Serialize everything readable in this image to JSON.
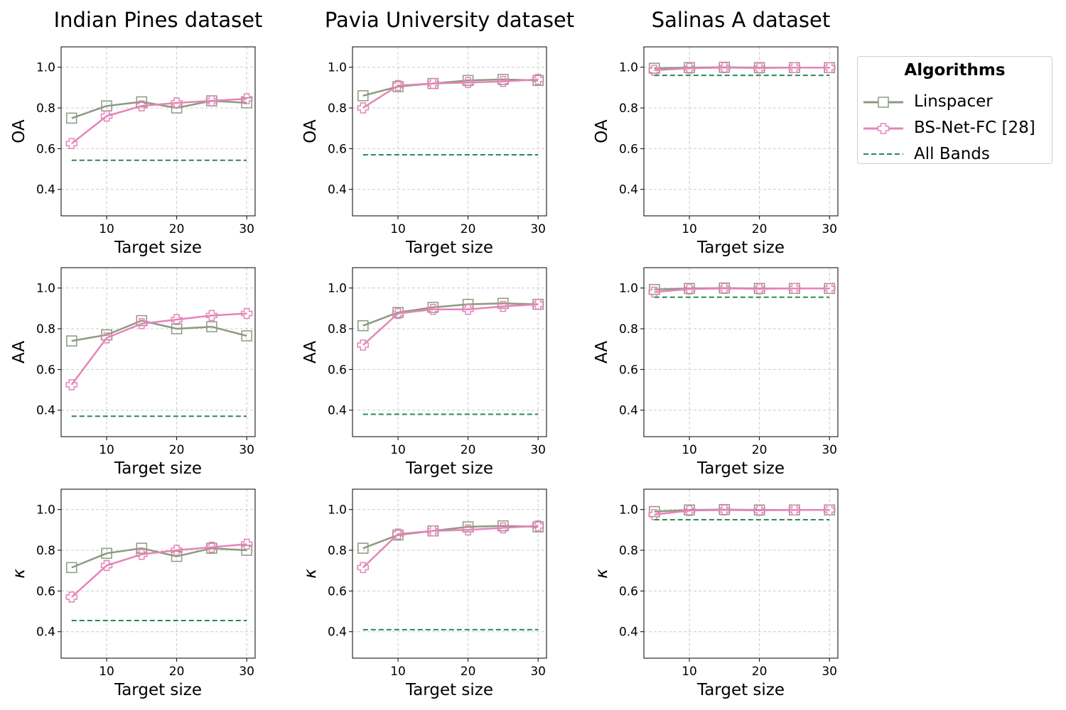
{
  "legend": {
    "title": "Algorithms",
    "entries": [
      "Linspacer",
      "BS-Net-FC [28]",
      "All Bands"
    ]
  },
  "colors": {
    "linspacer": "#8c9a80",
    "bsnet": "#e584b8",
    "all_bands": "#2a8a50",
    "grid": "#cccccc"
  },
  "chart_data": [
    {
      "type": "line",
      "title": "Indian Pines dataset",
      "xlabel": "Target size",
      "ylabel": "OA",
      "x": [
        5,
        10,
        15,
        20,
        25,
        30
      ],
      "xticks": [
        10,
        20,
        30
      ],
      "yticks": [
        "0.4",
        "0.6",
        "0.8",
        "1.0"
      ],
      "xlim": [
        3.5,
        31.2
      ],
      "ylim": [
        0.27,
        1.1
      ],
      "grid": true,
      "series": [
        {
          "name": "Linspacer",
          "values": [
            0.75,
            0.81,
            0.83,
            0.8,
            0.835,
            0.825
          ]
        },
        {
          "name": "BS-Net-FC [28]",
          "values": [
            0.625,
            0.76,
            0.81,
            0.825,
            0.835,
            0.845
          ]
        },
        {
          "name": "All Bands",
          "values": [
            0.543,
            0.543,
            0.543,
            0.543,
            0.543,
            0.543
          ]
        }
      ]
    },
    {
      "type": "line",
      "title": "Pavia University dataset",
      "xlabel": "Target size",
      "ylabel": "OA",
      "x": [
        5,
        10,
        15,
        20,
        25,
        30
      ],
      "xticks": [
        10,
        20,
        30
      ],
      "yticks": [
        "0.4",
        "0.6",
        "0.8",
        "1.0"
      ],
      "xlim": [
        3.5,
        31.2
      ],
      "ylim": [
        0.27,
        1.1
      ],
      "grid": true,
      "series": [
        {
          "name": "Linspacer",
          "values": [
            0.86,
            0.905,
            0.92,
            0.935,
            0.94,
            0.935
          ]
        },
        {
          "name": "BS-Net-FC [28]",
          "values": [
            0.8,
            0.91,
            0.92,
            0.925,
            0.93,
            0.94
          ]
        },
        {
          "name": "All Bands",
          "values": [
            0.57,
            0.57,
            0.57,
            0.57,
            0.57,
            0.57
          ]
        }
      ]
    },
    {
      "type": "line",
      "title": "Salinas A dataset",
      "xlabel": "Target size",
      "ylabel": "OA",
      "x": [
        5,
        10,
        15,
        20,
        25,
        30
      ],
      "xticks": [
        10,
        20,
        30
      ],
      "yticks": [
        "0.4",
        "0.6",
        "0.8",
        "1.0"
      ],
      "xlim": [
        3.5,
        31.2
      ],
      "ylim": [
        0.27,
        1.1
      ],
      "grid": true,
      "series": [
        {
          "name": "Linspacer",
          "values": [
            0.995,
            0.998,
            1.0,
            0.998,
            0.998,
            0.998
          ]
        },
        {
          "name": "BS-Net-FC [28]",
          "values": [
            0.985,
            0.995,
            0.998,
            0.996,
            0.998,
            0.998
          ]
        },
        {
          "name": "All Bands",
          "values": [
            0.96,
            0.96,
            0.96,
            0.96,
            0.96,
            0.96
          ]
        }
      ]
    },
    {
      "type": "line",
      "title": "",
      "xlabel": "Target size",
      "ylabel": "AA",
      "x": [
        5,
        10,
        15,
        20,
        25,
        30
      ],
      "xticks": [
        10,
        20,
        30
      ],
      "yticks": [
        "0.4",
        "0.6",
        "0.8",
        "1.0"
      ],
      "xlim": [
        3.5,
        31.2
      ],
      "ylim": [
        0.27,
        1.1
      ],
      "grid": true,
      "series": [
        {
          "name": "Linspacer",
          "values": [
            0.74,
            0.77,
            0.84,
            0.8,
            0.81,
            0.765
          ]
        },
        {
          "name": "BS-Net-FC [28]",
          "values": [
            0.525,
            0.755,
            0.825,
            0.845,
            0.865,
            0.875
          ]
        },
        {
          "name": "All Bands",
          "values": [
            0.37,
            0.37,
            0.37,
            0.37,
            0.37,
            0.37
          ]
        }
      ]
    },
    {
      "type": "line",
      "title": "",
      "xlabel": "Target size",
      "ylabel": "AA",
      "x": [
        5,
        10,
        15,
        20,
        25,
        30
      ],
      "xticks": [
        10,
        20,
        30
      ],
      "yticks": [
        "0.4",
        "0.6",
        "0.8",
        "1.0"
      ],
      "xlim": [
        3.5,
        31.2
      ],
      "ylim": [
        0.27,
        1.1
      ],
      "grid": true,
      "series": [
        {
          "name": "Linspacer",
          "values": [
            0.815,
            0.88,
            0.905,
            0.92,
            0.925,
            0.92
          ]
        },
        {
          "name": "BS-Net-FC [28]",
          "values": [
            0.72,
            0.875,
            0.895,
            0.895,
            0.91,
            0.92
          ]
        },
        {
          "name": "All Bands",
          "values": [
            0.38,
            0.38,
            0.38,
            0.38,
            0.38,
            0.38
          ]
        }
      ]
    },
    {
      "type": "line",
      "title": "",
      "xlabel": "Target size",
      "ylabel": "AA",
      "x": [
        5,
        10,
        15,
        20,
        25,
        30
      ],
      "xticks": [
        10,
        20,
        30
      ],
      "yticks": [
        "0.4",
        "0.6",
        "0.8",
        "1.0"
      ],
      "xlim": [
        3.5,
        31.2
      ],
      "ylim": [
        0.27,
        1.1
      ],
      "grid": true,
      "series": [
        {
          "name": "Linspacer",
          "values": [
            0.993,
            0.998,
            1.0,
            0.998,
            0.998,
            0.998
          ]
        },
        {
          "name": "BS-Net-FC [28]",
          "values": [
            0.98,
            0.995,
            0.998,
            0.996,
            0.998,
            0.998
          ]
        },
        {
          "name": "All Bands",
          "values": [
            0.955,
            0.955,
            0.955,
            0.955,
            0.955,
            0.955
          ]
        }
      ]
    },
    {
      "type": "line",
      "title": "",
      "xlabel": "Target size",
      "ylabel": "κ",
      "x": [
        5,
        10,
        15,
        20,
        25,
        30
      ],
      "xticks": [
        10,
        20,
        30
      ],
      "yticks": [
        "0.4",
        "0.6",
        "0.8",
        "1.0"
      ],
      "xlim": [
        3.5,
        31.2
      ],
      "ylim": [
        0.27,
        1.1
      ],
      "grid": true,
      "series": [
        {
          "name": "Linspacer",
          "values": [
            0.715,
            0.785,
            0.81,
            0.77,
            0.81,
            0.8
          ]
        },
        {
          "name": "BS-Net-FC [28]",
          "values": [
            0.57,
            0.725,
            0.78,
            0.8,
            0.815,
            0.83
          ]
        },
        {
          "name": "All Bands",
          "values": [
            0.455,
            0.455,
            0.455,
            0.455,
            0.455,
            0.455
          ]
        }
      ]
    },
    {
      "type": "line",
      "title": "",
      "xlabel": "Target size",
      "ylabel": "κ",
      "x": [
        5,
        10,
        15,
        20,
        25,
        30
      ],
      "xticks": [
        10,
        20,
        30
      ],
      "yticks": [
        "0.4",
        "0.6",
        "0.8",
        "1.0"
      ],
      "xlim": [
        3.5,
        31.2
      ],
      "ylim": [
        0.27,
        1.1
      ],
      "grid": true,
      "series": [
        {
          "name": "Linspacer",
          "values": [
            0.81,
            0.875,
            0.895,
            0.915,
            0.92,
            0.915
          ]
        },
        {
          "name": "BS-Net-FC [28]",
          "values": [
            0.715,
            0.88,
            0.895,
            0.9,
            0.91,
            0.92
          ]
        },
        {
          "name": "All Bands",
          "values": [
            0.41,
            0.41,
            0.41,
            0.41,
            0.41,
            0.41
          ]
        }
      ]
    },
    {
      "type": "line",
      "title": "",
      "xlabel": "Target size",
      "ylabel": "κ",
      "x": [
        5,
        10,
        15,
        20,
        25,
        30
      ],
      "xticks": [
        10,
        20,
        30
      ],
      "yticks": [
        "0.4",
        "0.6",
        "0.8",
        "1.0"
      ],
      "xlim": [
        3.5,
        31.2
      ],
      "ylim": [
        0.27,
        1.1
      ],
      "grid": true,
      "series": [
        {
          "name": "Linspacer",
          "values": [
            0.99,
            0.998,
            1.0,
            0.998,
            0.998,
            0.998
          ]
        },
        {
          "name": "BS-Net-FC [28]",
          "values": [
            0.975,
            0.995,
            0.998,
            0.996,
            0.998,
            0.998
          ]
        },
        {
          "name": "All Bands",
          "values": [
            0.95,
            0.95,
            0.95,
            0.95,
            0.95,
            0.95
          ]
        }
      ]
    }
  ]
}
